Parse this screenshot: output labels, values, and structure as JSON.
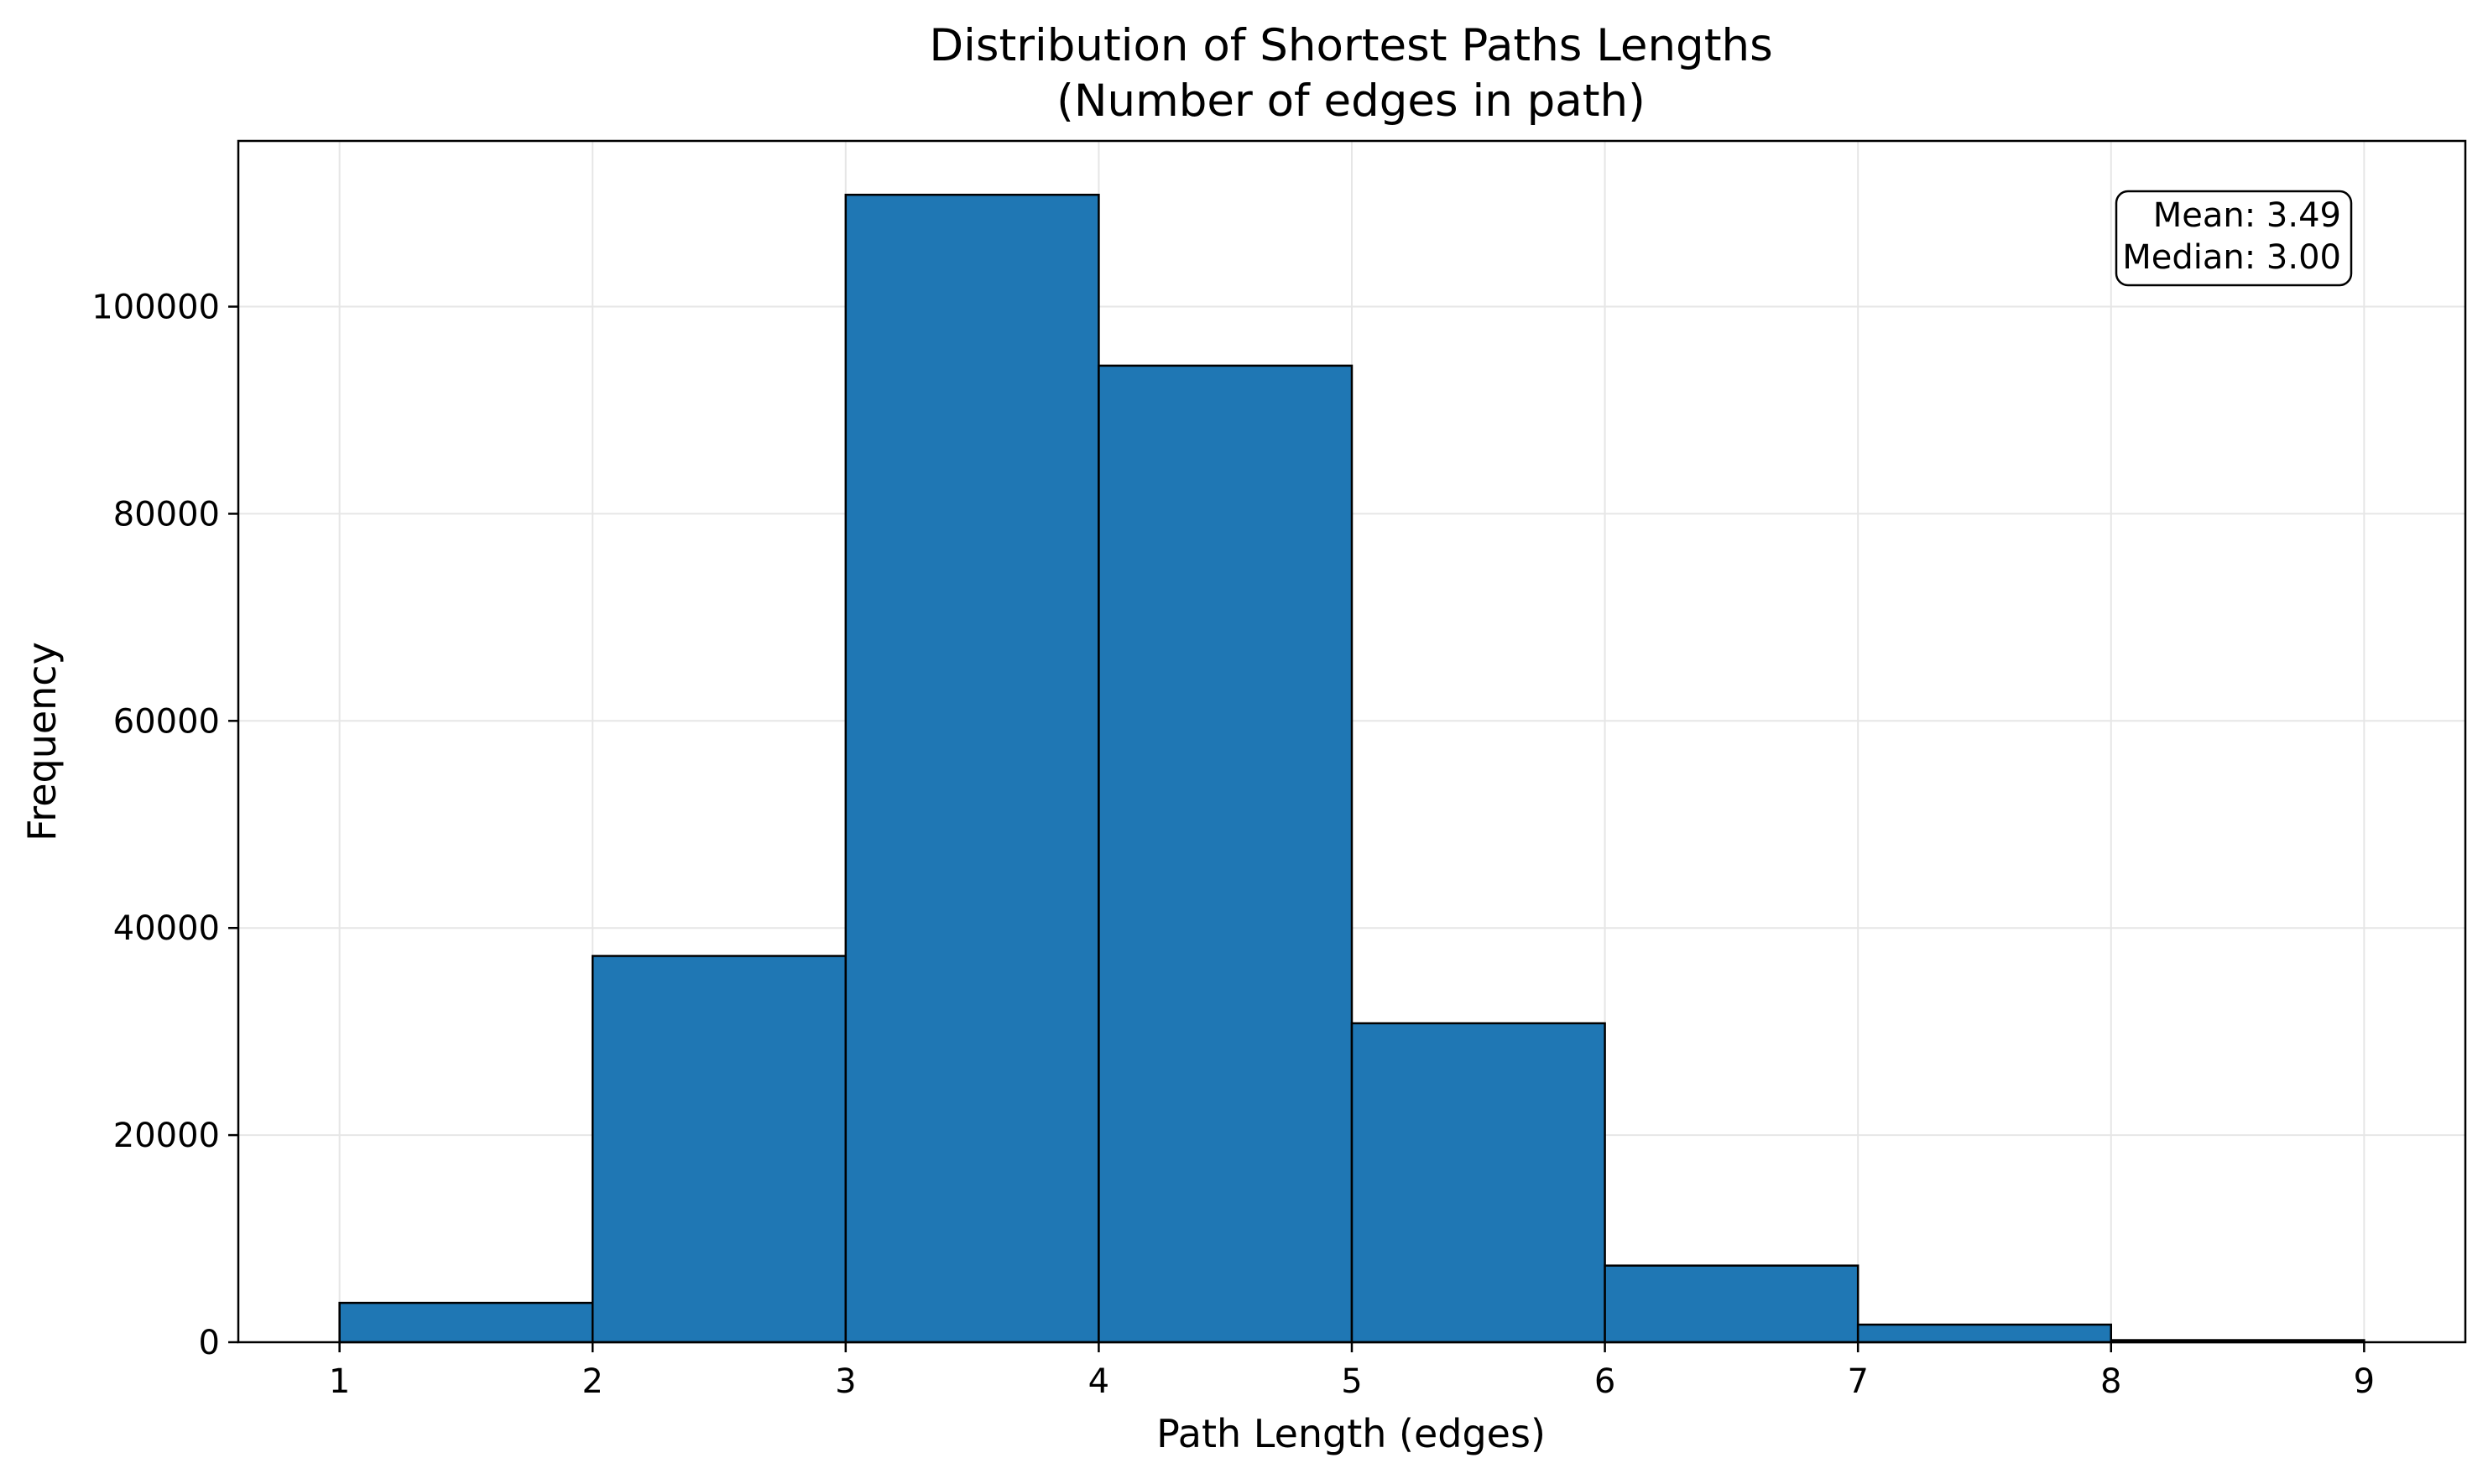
{
  "chart_data": {
    "type": "bar",
    "title": "Distribution of Shortest Paths Lengths",
    "subtitle": "(Number of edges in path)",
    "xlabel": "Path Length (edges)",
    "ylabel": "Frequency",
    "bin_edges": [
      1,
      2,
      3,
      4,
      5,
      6,
      7,
      8,
      9
    ],
    "values": [
      3800,
      37300,
      110800,
      94300,
      30800,
      7400,
      1700,
      200
    ],
    "xlim": [
      0.6,
      9.4
    ],
    "ylim": [
      0,
      116000
    ],
    "xticks": [
      "1",
      "2",
      "3",
      "4",
      "5",
      "6",
      "7",
      "8",
      "9"
    ],
    "yticks": [
      0,
      20000,
      40000,
      60000,
      80000,
      100000
    ],
    "ytick_labels": [
      "0",
      "20000",
      "40000",
      "60000",
      "80000",
      "100000"
    ],
    "grid": true,
    "annotation": {
      "lines": [
        "Mean: 3.49",
        "Median: 3.00"
      ],
      "placement": "top-right"
    },
    "colors": {
      "bar_fill": "#1f77b4",
      "bar_edge": "#000000",
      "grid": "#e6e6e6"
    }
  }
}
